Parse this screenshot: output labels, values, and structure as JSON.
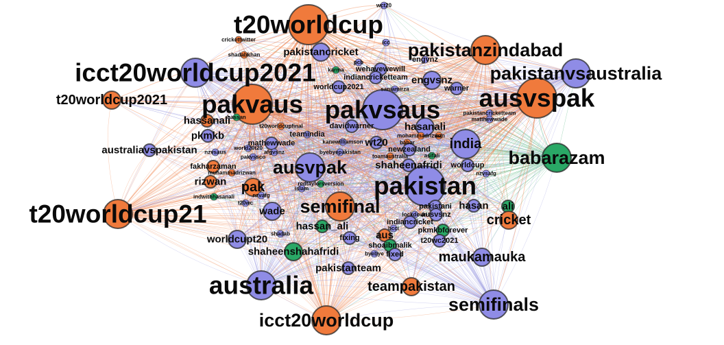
{
  "diagram": {
    "title": "",
    "colors": {
      "orange": "#f07a3c",
      "blue": "#8f8ce6",
      "green": "#2aa866",
      "edge_orange": "#f0824c",
      "edge_blue": "#9a98e0",
      "edge_green": "#3fae70"
    },
    "nodes": [
      {
        "id": "wct20",
        "label": "wct20",
        "color": "blue",
        "size": "xs",
        "labelSize": "xs"
      },
      {
        "id": "t20worldcup",
        "label": "t20worldcup",
        "color": "orange",
        "size": "xl",
        "labelSize": "xxl"
      },
      {
        "id": "pakistanzindabad",
        "label": "pakistanzindabad",
        "color": "orange",
        "size": "l",
        "labelSize": "xl"
      },
      {
        "id": "pakistanvsaustralia",
        "label": "pakistanvsaustralia",
        "color": "blue",
        "size": "l",
        "labelSize": "xl"
      },
      {
        "id": "icct20worldcup2021",
        "label": "icct20worldcup2021",
        "color": "blue",
        "size": "l",
        "labelSize": "xxl"
      },
      {
        "id": "t20worldcup2021",
        "label": "t20worldcup2021",
        "color": "orange",
        "size": "m",
        "labelSize": "l"
      },
      {
        "id": "pakvaus",
        "label": "pakvaus",
        "color": "orange",
        "size": "xl",
        "labelSize": "xxl"
      },
      {
        "id": "pakvsaus",
        "label": "pakvsaus",
        "color": "blue",
        "size": "xl",
        "labelSize": "xxl"
      },
      {
        "id": "ausvspak",
        "label": "ausvspak",
        "color": "orange",
        "size": "xl",
        "labelSize": "xxl"
      },
      {
        "id": "pakistancricket",
        "label": "pakistancricket",
        "color": "blue",
        "size": "m",
        "labelSize": "m"
      },
      {
        "id": "crickettwitter",
        "label": "crickettwitter",
        "color": "orange",
        "size": "xs",
        "labelSize": "xs"
      },
      {
        "id": "shadabkhan",
        "label": "shadabkhan",
        "color": "orange",
        "size": "xs",
        "labelSize": "xs"
      },
      {
        "id": "icc",
        "label": "icc",
        "color": "blue",
        "size": "xs",
        "labelSize": "xs"
      },
      {
        "id": "pcb",
        "label": "pcb",
        "color": "blue",
        "size": "xs",
        "labelSize": "xs"
      },
      {
        "id": "engvnz",
        "label": "engvnz",
        "color": "blue",
        "size": "xs",
        "labelSize": "s"
      },
      {
        "id": "karma",
        "label": "karma",
        "color": "green",
        "size": "xs",
        "labelSize": "xs"
      },
      {
        "id": "wehavewewill",
        "label": "wehavewewill",
        "color": "blue",
        "size": "s",
        "labelSize": "s"
      },
      {
        "id": "indiancricketteam",
        "label": "indiancricketteam",
        "color": "blue",
        "size": "s",
        "labelSize": "s"
      },
      {
        "id": "engvsnz",
        "label": "engvsnz",
        "color": "blue",
        "size": "m",
        "labelSize": "m"
      },
      {
        "id": "worldcup2021",
        "label": "worldcup2021",
        "color": "blue",
        "size": "s",
        "labelSize": "s"
      },
      {
        "id": "saniamirza",
        "label": "saniamirza",
        "color": "blue",
        "size": "xs",
        "labelSize": "xs"
      },
      {
        "id": "warner",
        "label": "warner",
        "color": "blue",
        "size": "s",
        "labelSize": "s"
      },
      {
        "id": "pakistancricketteam",
        "label": "pakistancricketteam",
        "color": "blue",
        "size": "xs",
        "labelSize": "xs"
      },
      {
        "id": "matthewwade",
        "label": "matthewwade",
        "color": "blue",
        "size": "xs",
        "labelSize": "xs"
      },
      {
        "id": "hassan",
        "label": "hassan",
        "color": "green",
        "size": "xs",
        "labelSize": "xs"
      },
      {
        "id": "hassanali",
        "label": "hassanali",
        "color": "orange",
        "size": "s",
        "labelSize": "m"
      },
      {
        "id": "t20worldcupfinal",
        "label": "t20worldcupfinal",
        "color": "orange",
        "size": "xs",
        "labelSize": "xs"
      },
      {
        "id": "teamindia",
        "label": "teamindia",
        "color": "blue",
        "size": "xs",
        "labelSize": "s"
      },
      {
        "id": "davidwarner",
        "label": "davidwarner",
        "color": "blue",
        "size": "s",
        "labelSize": "s"
      },
      {
        "id": "hasanali",
        "label": "hasanali",
        "color": "blue",
        "size": "m",
        "labelSize": "m"
      },
      {
        "id": "pkmkb",
        "label": "pkmkb",
        "color": "blue",
        "size": "s",
        "labelSize": "m"
      },
      {
        "id": "kanewilliamson",
        "label": "kanewilliamson",
        "color": "blue",
        "size": "xs",
        "labelSize": "xs"
      },
      {
        "id": "babar",
        "label": "babar",
        "color": "orange",
        "size": "xs",
        "labelSize": "xs"
      },
      {
        "id": "mohammadrizwan",
        "label": "mohammadrizwan",
        "color": "orange",
        "size": "xs",
        "labelSize": "xs"
      },
      {
        "id": "nz",
        "label": "nz",
        "color": "orange",
        "size": "xs",
        "labelSize": "xs"
      },
      {
        "id": "mathewwade",
        "label": "mathewwade",
        "color": "blue",
        "size": "s",
        "labelSize": "s"
      },
      {
        "id": "byebyepakistan",
        "label": "byebyepakistan",
        "color": "blue",
        "size": "xs",
        "labelSize": "xs"
      },
      {
        "id": "wt20",
        "label": "wt20",
        "color": "blue",
        "size": "s",
        "labelSize": "m"
      },
      {
        "id": "india",
        "label": "india",
        "color": "blue",
        "size": "l",
        "labelSize": "l"
      },
      {
        "id": "babarazam",
        "label": "babarazam",
        "color": "green",
        "size": "l",
        "labelSize": "xl"
      },
      {
        "id": "australiavspakistan",
        "label": "australiavspakistan",
        "color": "blue",
        "size": "s",
        "labelSize": "m"
      },
      {
        "id": "nzvsaus",
        "label": "nzvsaus",
        "color": "blue",
        "size": "xs",
        "labelSize": "xs"
      },
      {
        "id": "world20t20",
        "label": "world20t20",
        "color": "blue",
        "size": "xs",
        "labelSize": "xs"
      },
      {
        "id": "afgvsnz",
        "label": "afgvsnz",
        "color": "blue",
        "size": "xs",
        "labelSize": "xs"
      },
      {
        "id": "pakvssco",
        "label": "pakvssco",
        "color": "blue",
        "size": "xs",
        "labelSize": "xs"
      },
      {
        "id": "newzealand",
        "label": "newzealand",
        "color": "blue",
        "size": "s",
        "labelSize": "s"
      },
      {
        "id": "toamaustralia",
        "label": "toamaustralia",
        "color": "orange",
        "size": "xs",
        "labelSize": "xs"
      },
      {
        "id": "asifali",
        "label": "asifali",
        "color": "green",
        "size": "xs",
        "labelSize": "xs"
      },
      {
        "id": "worldcup",
        "label": "worldcup",
        "color": "blue",
        "size": "s",
        "labelSize": "s"
      },
      {
        "id": "fakharzaman",
        "label": "fakharzaman",
        "color": "orange",
        "size": "s",
        "labelSize": "s"
      },
      {
        "id": "ausvpak",
        "label": "ausvpak",
        "color": "blue",
        "size": "l",
        "labelSize": "xl"
      },
      {
        "id": "shaheenafridi",
        "label": "shaheenafridi",
        "color": "blue",
        "size": "s",
        "labelSize": "m"
      },
      {
        "id": "muhammadrizwan",
        "label": "muhammadrizwan",
        "color": "orange",
        "size": "xs",
        "labelSize": "xs"
      },
      {
        "id": "rizwan",
        "label": "rizwan",
        "color": "orange",
        "size": "s",
        "labelSize": "m"
      },
      {
        "id": "pakistan",
        "label": "pakistan",
        "color": "blue",
        "size": "xl",
        "labelSize": "xxl"
      },
      {
        "id": "nzvsafg",
        "label": "nzvsafg",
        "color": "blue",
        "size": "xs",
        "labelSize": "xs"
      },
      {
        "id": "pak",
        "label": "pak",
        "color": "orange",
        "size": "m",
        "labelSize": "l"
      },
      {
        "id": "redtaylorsversion",
        "label": "redtaylorsversion",
        "color": "green",
        "size": "xs",
        "labelSize": "xs"
      },
      {
        "id": "islam",
        "label": "islam",
        "color": "blue",
        "size": "xs",
        "labelSize": "xs"
      },
      {
        "id": "indwithhasanali",
        "label": "indwithhasanali",
        "color": "green",
        "size": "xs",
        "labelSize": "xs"
      },
      {
        "id": "nzvafg",
        "label": "nzvafg",
        "color": "blue",
        "size": "xs",
        "labelSize": "xs"
      },
      {
        "id": "t20wc",
        "label": "t20wc",
        "color": "blue",
        "size": "xs",
        "labelSize": "xs"
      },
      {
        "id": "t20worldcup21",
        "label": "t20worldcup21",
        "color": "orange",
        "size": "l",
        "labelSize": "xxl"
      },
      {
        "id": "semifinal",
        "label": "semifinal",
        "color": "orange",
        "size": "l",
        "labelSize": "xl"
      },
      {
        "id": "pakistani",
        "label": "pakistani",
        "color": "blue",
        "size": "s",
        "labelSize": "s"
      },
      {
        "id": "hasan",
        "label": "hasan",
        "color": "blue",
        "size": "s",
        "labelSize": "m"
      },
      {
        "id": "ali",
        "label": "ali",
        "color": "green",
        "size": "s",
        "labelSize": "m"
      },
      {
        "id": "wade",
        "label": "wade",
        "color": "blue",
        "size": "m",
        "labelSize": "m"
      },
      {
        "id": "lockdown",
        "label": "lockdown",
        "color": "blue",
        "size": "xs",
        "labelSize": "xs"
      },
      {
        "id": "ausvsnz",
        "label": "ausvsnz",
        "color": "blue",
        "size": "s",
        "labelSize": "s"
      },
      {
        "id": "cricket",
        "label": "cricket",
        "color": "orange",
        "size": "m",
        "labelSize": "l"
      },
      {
        "id": "hassan_ali",
        "label": "hassan_ali",
        "color": "green",
        "size": "s",
        "labelSize": "m"
      },
      {
        "id": "indiancricket",
        "label": "indiancricket",
        "color": "blue",
        "size": "s",
        "labelSize": "s"
      },
      {
        "id": "bcci",
        "label": "bcci",
        "color": "blue",
        "size": "xs",
        "labelSize": "xs"
      },
      {
        "id": "pkmkbforever",
        "label": "pkmkbforever",
        "color": "green",
        "size": "s",
        "labelSize": "s"
      },
      {
        "id": "worldcupt20",
        "label": "worldcupt20",
        "color": "blue",
        "size": "m",
        "labelSize": "m"
      },
      {
        "id": "shadab",
        "label": "shadab",
        "color": "blue",
        "size": "xs",
        "labelSize": "xs"
      },
      {
        "id": "fixing",
        "label": "fixing",
        "color": "blue",
        "size": "s",
        "labelSize": "s"
      },
      {
        "id": "aus",
        "label": "aus",
        "color": "orange",
        "size": "s",
        "labelSize": "m"
      },
      {
        "id": "t20wc2021",
        "label": "t20wc2021",
        "color": "blue",
        "size": "s",
        "labelSize": "s"
      },
      {
        "id": "shoaibmalik",
        "label": "shoaibmalik",
        "color": "green",
        "size": "s",
        "labelSize": "s"
      },
      {
        "id": "shaheenshahafridi",
        "label": "shaheenshahafridi",
        "color": "green",
        "size": "m",
        "labelSize": "m"
      },
      {
        "id": "fixed",
        "label": "fixed",
        "color": "blue",
        "size": "s",
        "labelSize": "s"
      },
      {
        "id": "byebye",
        "label": "byebye",
        "color": "blue",
        "size": "xs",
        "labelSize": "xs"
      },
      {
        "id": "maukamauka",
        "label": "maukamauka",
        "color": "blue",
        "size": "m",
        "labelSize": "l"
      },
      {
        "id": "pakistanteam",
        "label": "pakistanteam",
        "color": "blue",
        "size": "s",
        "labelSize": "m"
      },
      {
        "id": "australia",
        "label": "australia",
        "color": "blue",
        "size": "l",
        "labelSize": "xxl"
      },
      {
        "id": "teampakistan",
        "label": "teampakistan",
        "color": "orange",
        "size": "m",
        "labelSize": "l"
      },
      {
        "id": "semifinals",
        "label": "semifinals",
        "color": "blue",
        "size": "l",
        "labelSize": "xl"
      },
      {
        "id": "icct20worldcup",
        "label": "icct20worldcup",
        "color": "orange",
        "size": "l",
        "labelSize": "xl"
      }
    ]
  }
}
